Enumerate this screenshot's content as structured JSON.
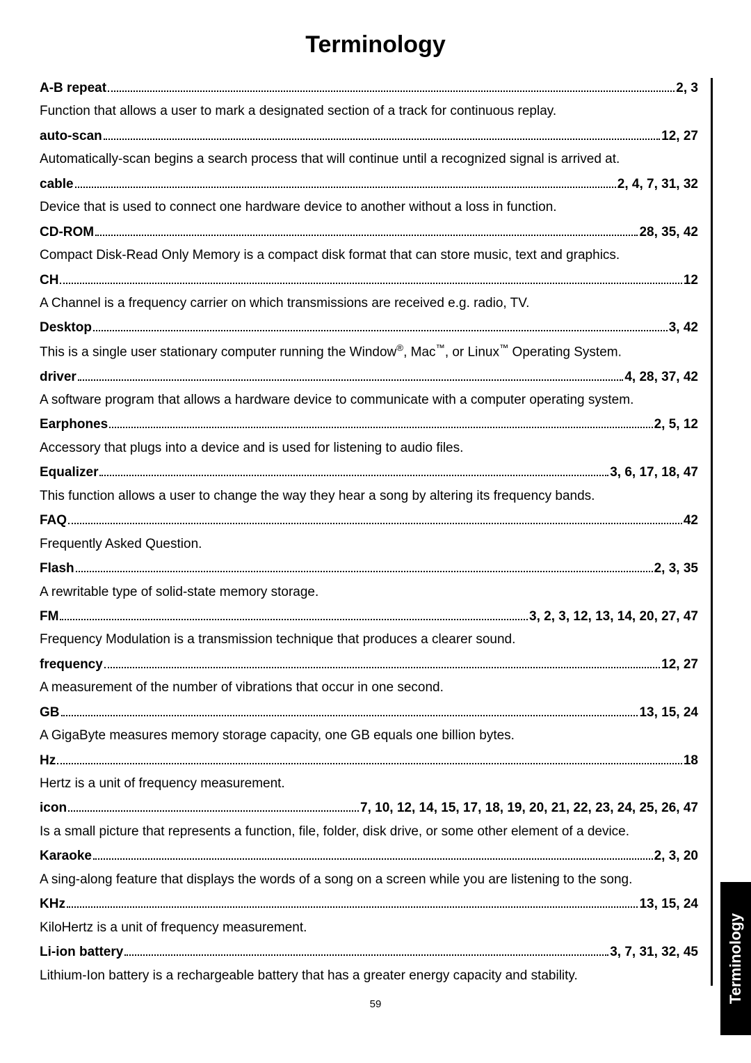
{
  "title": "Terminology",
  "page_number": "59",
  "side_tab": "Terminology",
  "entries": [
    {
      "term": "A-B repeat",
      "pages": "2, 3",
      "desc": "Function that allows a user to mark a designated section of a track for continuous replay."
    },
    {
      "term": "auto-scan",
      "pages": "12, 27",
      "desc": "Automatically-scan begins a search process that will continue until a recognized signal is arrived at."
    },
    {
      "term": "cable",
      "pages": "2, 4, 7, 31, 32",
      "desc": "Device that is used to connect one hardware device to another without a loss in function."
    },
    {
      "term": "CD-ROM",
      "pages": "28, 35, 42",
      "desc": "Compact Disk-Read Only Memory is a compact disk format that can store music, text and graphics."
    },
    {
      "term": "CH",
      "pages": "12",
      "desc": "A Channel is a frequency carrier on which transmissions are received e.g. radio, TV."
    },
    {
      "term": "Desktop",
      "pages": "3, 42",
      "desc": "This is a single user stationary computer running the Window®, Mac™, or Linux™ Operating System.",
      "desc_html": true
    },
    {
      "term": "driver",
      "pages": "4, 28, 37, 42",
      "desc": "A software program that allows a hardware device to communicate with a computer operating system."
    },
    {
      "term": "Earphones",
      "term_space": true,
      "pages": "2, 5, 12",
      "desc": "Accessory that plugs into a device and is used for listening to audio files."
    },
    {
      "term": "Equalizer",
      "pages": "3, 6, 17, 18, 47",
      "desc": "This function allows a user to change the way they hear a song by altering its frequency bands."
    },
    {
      "term": "FAQ",
      "term_space": true,
      "pages": "42",
      "desc": "Frequently Asked Question."
    },
    {
      "term": "Flash",
      "term_space": true,
      "pages": "2, 3, 35",
      "desc": "A rewritable type of solid-state memory storage."
    },
    {
      "term": "FM",
      "pages": "3, 2, 3, 12, 13, 14, 20, 27, 47",
      "desc": "Frequency Modulation is a transmission technique that produces a clearer sound."
    },
    {
      "term": "frequency",
      "pages": "12, 27",
      "desc": "A measurement of the number of vibrations that occur in one second."
    },
    {
      "term": "GB",
      "term_space": true,
      "pages": "13, 15, 24",
      "desc": "A GigaByte measures memory storage capacity, one GB equals one billion bytes."
    },
    {
      "term": "Hz",
      "term_space": true,
      "pages": "18",
      "desc": "Hertz is a unit of frequency measurement."
    },
    {
      "term": "icon",
      "term_space": true,
      "pages": "7, 10, 12, 14, 15, 17, 18, 19, 20, 21, 22, 23, 24, 25, 26, 47",
      "desc": "Is a small picture that represents a function, file, folder, disk drive, or some other element of a device."
    },
    {
      "term": "Karaoke",
      "pages": "2, 3, 20",
      "desc": "A sing-along feature that displays the words of a song on a screen while you are listening to the song."
    },
    {
      "term": "KHz",
      "pages": "13, 15, 24",
      "desc": "KiloHertz is a unit of frequency measurement."
    },
    {
      "term": "Li-ion battery",
      "pages": "3, 7, 31, 32, 45",
      "desc": "Lithium-Ion battery is a rechargeable battery that has a greater energy capacity and stability."
    }
  ]
}
